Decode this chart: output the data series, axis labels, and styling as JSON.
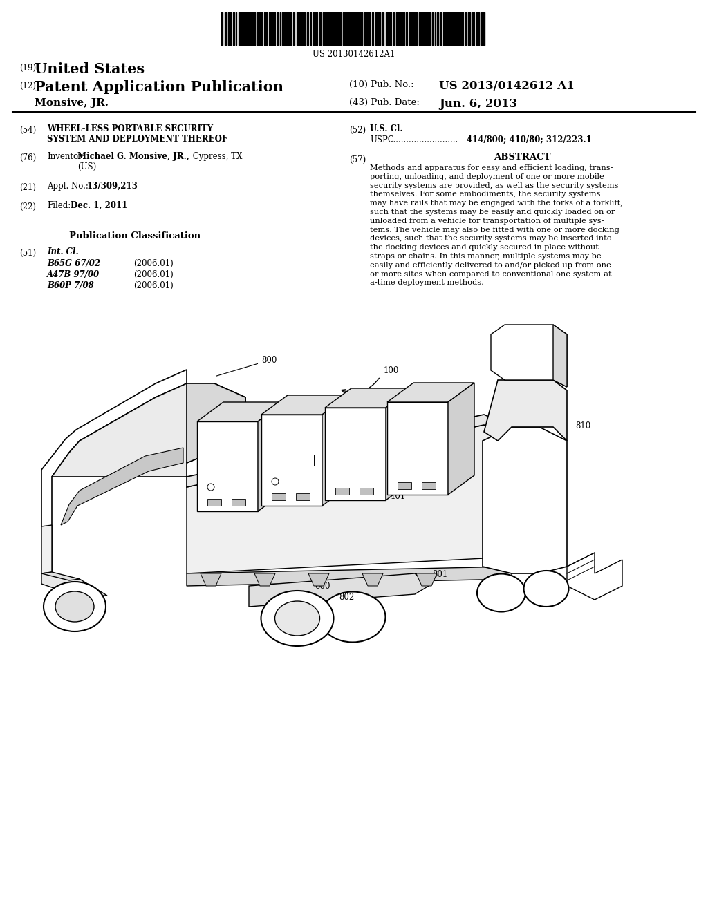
{
  "background_color": "#ffffff",
  "barcode_text": "US 20130142612A1",
  "patent_number_label": "(19)",
  "patent_number_title": "United States",
  "pub_label": "(12)",
  "pub_title": "Patent Application Publication",
  "pub_no_label": "(10) Pub. No.:",
  "pub_no_value": "US 2013/0142612 A1",
  "pub_date_label": "(43) Pub. Date:",
  "pub_date_value": "Jun. 6, 2013",
  "inventor_name_line": "Monsive, JR.",
  "title_label": "(54)",
  "title_text_line1": "WHEEL-LESS PORTABLE SECURITY",
  "title_text_line2": "SYSTEM AND DEPLOYMENT THEREOF",
  "inventor_label": "(76)",
  "inventor_text": "Inventor:",
  "inventor_detail": "Michael G. Monsive, JR., Cypress, TX\n(US)",
  "appl_label": "(21)",
  "appl_text": "Appl. No.: 13/309,213",
  "filed_label": "(22)",
  "filed_text": "Filed:",
  "filed_date": "Dec. 1, 2011",
  "pub_class_title": "Publication Classification",
  "int_cl_label": "(51)",
  "int_cl_text": "Int. Cl.",
  "int_cl_1": "B65G 67/02",
  "int_cl_1_date": "(2006.01)",
  "int_cl_2": "A47B 97/00",
  "int_cl_2_date": "(2006.01)",
  "int_cl_3": "B60P 7/08",
  "int_cl_3_date": "(2006.01)",
  "us_cl_label": "(52)",
  "us_cl_text": "U.S. Cl.",
  "uspc_text": "USPC",
  "uspc_value": "414/800; 410/80; 312/223.1",
  "abstract_label": "(57)",
  "abstract_title": "ABSTRACT",
  "abstract_lines": [
    "Methods and apparatus for easy and efficient loading, trans-",
    "porting, unloading, and deployment of one or more mobile",
    "security systems are provided, as well as the security systems",
    "themselves. For some embodiments, the security systems",
    "may have rails that may be engaged with the forks of a forklift,",
    "such that the systems may be easily and quickly loaded on or",
    "unloaded from a vehicle for transportation of multiple sys-",
    "tems. The vehicle may also be fitted with one or more docking",
    "devices, such that the security systems may be inserted into",
    "the docking devices and quickly secured in place without",
    "straps or chains. In this manner, multiple systems may be",
    "easily and efficiently delivered to and/or picked up from one",
    "or more sites when compared to conventional one-system-at-",
    "a-time deployment methods."
  ]
}
